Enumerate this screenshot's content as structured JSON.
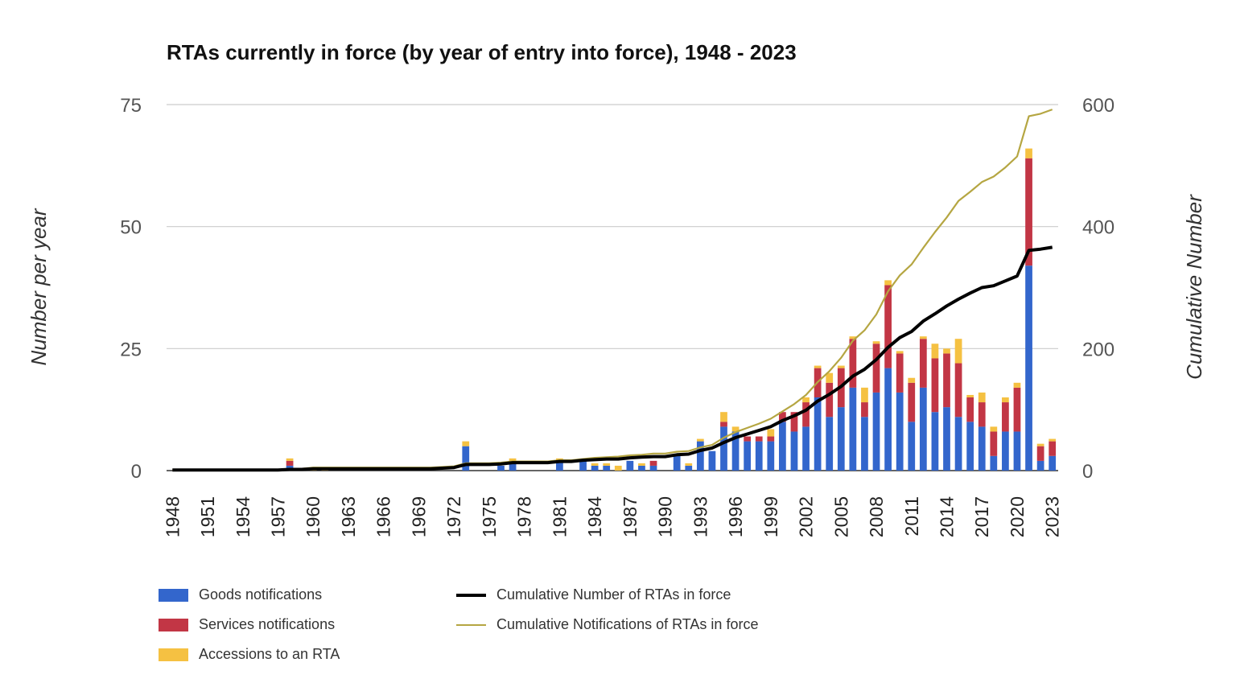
{
  "chart_data": {
    "type": "bar",
    "title": "RTAs currently in force (by year of entry into force), 1948 - 2023",
    "ylabel": "Number per year",
    "y2label": "Cumulative Number",
    "ylim": [
      0,
      75
    ],
    "y2lim": [
      0,
      600
    ],
    "yticks": [
      "0",
      "25",
      "50",
      "75"
    ],
    "y2ticks": [
      "0",
      "200",
      "400",
      "600"
    ],
    "x_tick_labels": [
      "1948",
      "1951",
      "1954",
      "1957",
      "1960",
      "1963",
      "1966",
      "1969",
      "1972",
      "1975",
      "1978",
      "1981",
      "1984",
      "1987",
      "1990",
      "1993",
      "1996",
      "1999",
      "2002",
      "2005",
      "2008",
      "2011",
      "2014",
      "2017",
      "2020",
      "2023"
    ],
    "stacked": true,
    "grid": true,
    "legend_position": "bottom",
    "x": [
      1948,
      1949,
      1950,
      1951,
      1952,
      1953,
      1954,
      1955,
      1956,
      1957,
      1958,
      1959,
      1960,
      1961,
      1962,
      1963,
      1964,
      1965,
      1966,
      1967,
      1968,
      1969,
      1970,
      1971,
      1972,
      1973,
      1974,
      1975,
      1976,
      1977,
      1978,
      1979,
      1980,
      1981,
      1982,
      1983,
      1984,
      1985,
      1986,
      1987,
      1988,
      1989,
      1990,
      1991,
      1992,
      1993,
      1994,
      1995,
      1996,
      1997,
      1998,
      1999,
      2000,
      2001,
      2002,
      2003,
      2004,
      2005,
      2006,
      2007,
      2008,
      2009,
      2010,
      2011,
      2012,
      2013,
      2014,
      2015,
      2016,
      2017,
      2018,
      2019,
      2020,
      2021,
      2022,
      2023
    ],
    "series": [
      {
        "name": "Goods notifications",
        "color": "#3366cc",
        "kind": "bar",
        "values": [
          0,
          0,
          0,
          0,
          0,
          0,
          0,
          0,
          0,
          0,
          1,
          0,
          0,
          0,
          0,
          0,
          0,
          0,
          0,
          0,
          0,
          0,
          0,
          0,
          0,
          5,
          0,
          0,
          1,
          2,
          0,
          0,
          0,
          2,
          0,
          2,
          1,
          1,
          0,
          2,
          1,
          1,
          0,
          3,
          1,
          6,
          4,
          9,
          8,
          6,
          6,
          6,
          10,
          8,
          9,
          15,
          11,
          13,
          17,
          11,
          16,
          21,
          16,
          10,
          17,
          12,
          13,
          11,
          10,
          9,
          3,
          8,
          8,
          42,
          2,
          3
        ]
      },
      {
        "name": "Services notifications",
        "color": "#c23645",
        "kind": "bar",
        "values": [
          0,
          0,
          0,
          0,
          0,
          0,
          0,
          0,
          0,
          0,
          1,
          0,
          0,
          0,
          0,
          0,
          0,
          0,
          0,
          0,
          0,
          0,
          0,
          0,
          0,
          0,
          0,
          0,
          0,
          0,
          0,
          0,
          0,
          0,
          0,
          0,
          0,
          0,
          0,
          0,
          0,
          1,
          0,
          0,
          0,
          0,
          0,
          1,
          0,
          1,
          1,
          1,
          2,
          4,
          5,
          6,
          7,
          8,
          10,
          3,
          10,
          17,
          8,
          8,
          10,
          11,
          11,
          11,
          5,
          5,
          5,
          6,
          9,
          22,
          3,
          3
        ]
      },
      {
        "name": "Accessions to an RTA",
        "color": "#f5c142",
        "kind": "bar",
        "values": [
          0,
          0,
          0,
          0,
          0,
          0,
          0,
          0,
          0,
          0,
          0.5,
          0,
          0.5,
          0.5,
          0,
          0,
          0,
          0,
          0,
          0,
          0,
          0,
          0,
          0,
          0,
          1,
          0,
          0,
          0,
          0.5,
          0,
          0,
          0,
          0.5,
          0,
          0,
          0.5,
          0.5,
          1,
          0,
          0.5,
          0,
          0,
          0,
          0.5,
          0.5,
          0,
          2,
          1,
          0,
          0,
          1.5,
          0,
          0,
          1,
          0.5,
          2,
          0.5,
          0.5,
          3,
          0.5,
          1,
          0.5,
          1,
          0.5,
          3,
          1,
          5,
          0.5,
          2,
          1,
          1,
          1,
          2,
          0.5,
          0.5
        ]
      },
      {
        "name": "Cumulative Number of RTAs in force",
        "color": "#000000",
        "kind": "line",
        "values": [
          1,
          1,
          1,
          1,
          1,
          1,
          1,
          1,
          1,
          1,
          2,
          2,
          3,
          3,
          3,
          3,
          3,
          3,
          3,
          3,
          3,
          3,
          3,
          4,
          5,
          10,
          10,
          10,
          11,
          13,
          13,
          13,
          13,
          15,
          15,
          17,
          18,
          19,
          19,
          21,
          22,
          23,
          23,
          26,
          27,
          33,
          37,
          46,
          54,
          60,
          66,
          72,
          82,
          90,
          99,
          114,
          125,
          138,
          155,
          166,
          182,
          202,
          218,
          228,
          245,
          257,
          270,
          281,
          291,
          300,
          303,
          311,
          319,
          361,
          363,
          366
        ]
      },
      {
        "name": "Cumulative Notifications of RTAs in force",
        "color": "#b5a642",
        "kind": "line",
        "values": [
          1,
          1,
          1,
          1,
          1,
          1,
          1,
          1,
          1,
          1,
          3,
          3,
          5,
          5,
          5,
          5,
          5,
          5,
          5,
          5,
          5,
          5,
          5,
          6,
          7,
          12,
          12,
          12,
          13,
          15,
          15,
          15,
          15,
          17,
          17,
          19,
          21,
          22,
          23,
          25,
          26,
          28,
          28,
          31,
          32,
          38,
          42,
          54,
          63,
          70,
          77,
          85,
          97,
          109,
          124,
          145,
          163,
          185,
          213,
          230,
          256,
          294,
          320,
          338,
          365,
          391,
          415,
          442,
          457,
          473,
          482,
          497,
          515,
          581,
          585,
          592
        ]
      }
    ]
  }
}
